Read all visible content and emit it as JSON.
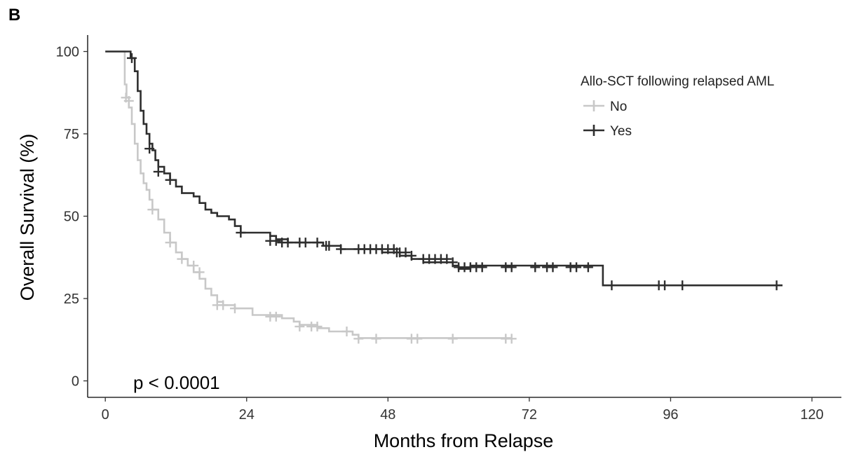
{
  "panel_letter": "B",
  "chart_data": {
    "type": "line",
    "subtype": "kaplan-meier",
    "xlabel": "Months from Relapse",
    "ylabel": "Overall Survival (%)",
    "xlim": [
      -3,
      125
    ],
    "ylim": [
      -5,
      105
    ],
    "xticks": [
      0,
      24,
      48,
      72,
      96,
      120
    ],
    "yticks": [
      0,
      25,
      50,
      75,
      100
    ],
    "grid": false,
    "legend": {
      "title": "Allo-SCT following relapsed AML",
      "position": "top-right"
    },
    "annotation": "p < 0.0001",
    "series": [
      {
        "name": "No",
        "color": "#c8c8c8",
        "steps": [
          [
            0,
            100
          ],
          [
            3,
            100
          ],
          [
            3.3,
            90
          ],
          [
            3.6,
            86
          ],
          [
            4,
            83
          ],
          [
            4.5,
            78
          ],
          [
            5,
            72
          ],
          [
            5.5,
            67
          ],
          [
            6,
            63
          ],
          [
            6.5,
            60
          ],
          [
            7,
            58
          ],
          [
            7.5,
            55
          ],
          [
            8,
            52
          ],
          [
            9,
            49
          ],
          [
            10,
            45
          ],
          [
            11,
            42
          ],
          [
            12,
            39
          ],
          [
            13,
            37
          ],
          [
            14,
            35
          ],
          [
            15,
            33
          ],
          [
            16,
            31
          ],
          [
            17,
            28
          ],
          [
            18,
            26
          ],
          [
            19,
            24
          ],
          [
            20,
            23
          ],
          [
            22,
            22
          ],
          [
            25,
            20
          ],
          [
            30,
            19
          ],
          [
            32,
            18
          ],
          [
            33,
            17
          ],
          [
            36,
            16
          ],
          [
            38,
            15
          ],
          [
            42,
            14
          ],
          [
            43,
            13
          ],
          [
            69,
            13
          ]
        ],
        "censored": [
          [
            3.5,
            86
          ],
          [
            4,
            85
          ],
          [
            8,
            52
          ],
          [
            11,
            42
          ],
          [
            13,
            37
          ],
          [
            15,
            35
          ],
          [
            16,
            33
          ],
          [
            19,
            23
          ],
          [
            20,
            23
          ],
          [
            22,
            22
          ],
          [
            28,
            19.5
          ],
          [
            29,
            19.5
          ],
          [
            33,
            16.5
          ],
          [
            35,
            16.5
          ],
          [
            36,
            16.5
          ],
          [
            41,
            15
          ],
          [
            43,
            12.8
          ],
          [
            46,
            12.8
          ],
          [
            52,
            12.8
          ],
          [
            53,
            12.8
          ],
          [
            59,
            12.8
          ],
          [
            68,
            12.8
          ],
          [
            69,
            12.8
          ]
        ]
      },
      {
        "name": "Yes",
        "color": "#2e2e2e",
        "steps": [
          [
            0,
            100
          ],
          [
            4,
            100
          ],
          [
            4.3,
            98
          ],
          [
            5,
            94
          ],
          [
            5.5,
            88
          ],
          [
            6,
            82
          ],
          [
            6.5,
            78
          ],
          [
            7,
            75
          ],
          [
            7.5,
            72
          ],
          [
            8,
            70
          ],
          [
            8.5,
            67
          ],
          [
            9,
            65
          ],
          [
            10,
            63
          ],
          [
            11,
            61
          ],
          [
            12,
            59
          ],
          [
            13,
            57
          ],
          [
            15,
            56
          ],
          [
            16,
            54
          ],
          [
            17,
            52
          ],
          [
            18,
            51
          ],
          [
            19,
            50
          ],
          [
            21,
            49
          ],
          [
            22,
            47
          ],
          [
            23,
            45
          ],
          [
            28,
            44
          ],
          [
            29,
            43
          ],
          [
            31,
            42
          ],
          [
            37,
            41
          ],
          [
            40,
            40
          ],
          [
            47,
            39
          ],
          [
            50,
            38
          ],
          [
            52,
            37
          ],
          [
            54,
            36
          ],
          [
            59,
            35
          ],
          [
            60,
            34
          ],
          [
            61,
            34
          ],
          [
            62,
            35
          ],
          [
            84,
            35
          ],
          [
            84.5,
            29
          ],
          [
            115,
            29
          ]
        ],
        "censored": [
          [
            4.5,
            98
          ],
          [
            7.5,
            70.5
          ],
          [
            9,
            63.5
          ],
          [
            11,
            61
          ],
          [
            23,
            45
          ],
          [
            28,
            42.5
          ],
          [
            29,
            42.5
          ],
          [
            30,
            42
          ],
          [
            31,
            42
          ],
          [
            33,
            42
          ],
          [
            34,
            42
          ],
          [
            36,
            42
          ],
          [
            37.5,
            41
          ],
          [
            38,
            41
          ],
          [
            40,
            40
          ],
          [
            43,
            40
          ],
          [
            44,
            40
          ],
          [
            45,
            40
          ],
          [
            46,
            40
          ],
          [
            47,
            40
          ],
          [
            48,
            40
          ],
          [
            49,
            40
          ],
          [
            49.5,
            39
          ],
          [
            50,
            39
          ],
          [
            51,
            39
          ],
          [
            52,
            38
          ],
          [
            54,
            37
          ],
          [
            55,
            37
          ],
          [
            56,
            37
          ],
          [
            57,
            37
          ],
          [
            58,
            37
          ],
          [
            59,
            36
          ],
          [
            60,
            34.5
          ],
          [
            61,
            34.5
          ],
          [
            62,
            34.5
          ],
          [
            63,
            34.5
          ],
          [
            64,
            34.5
          ],
          [
            68,
            34.5
          ],
          [
            69,
            34.5
          ],
          [
            73,
            34.5
          ],
          [
            75,
            34.5
          ],
          [
            76,
            34.5
          ],
          [
            79,
            34.5
          ],
          [
            80,
            34.5
          ],
          [
            82,
            34.5
          ],
          [
            86,
            29
          ],
          [
            94,
            29
          ],
          [
            95,
            29
          ],
          [
            98,
            29
          ],
          [
            114,
            29
          ]
        ]
      }
    ]
  }
}
